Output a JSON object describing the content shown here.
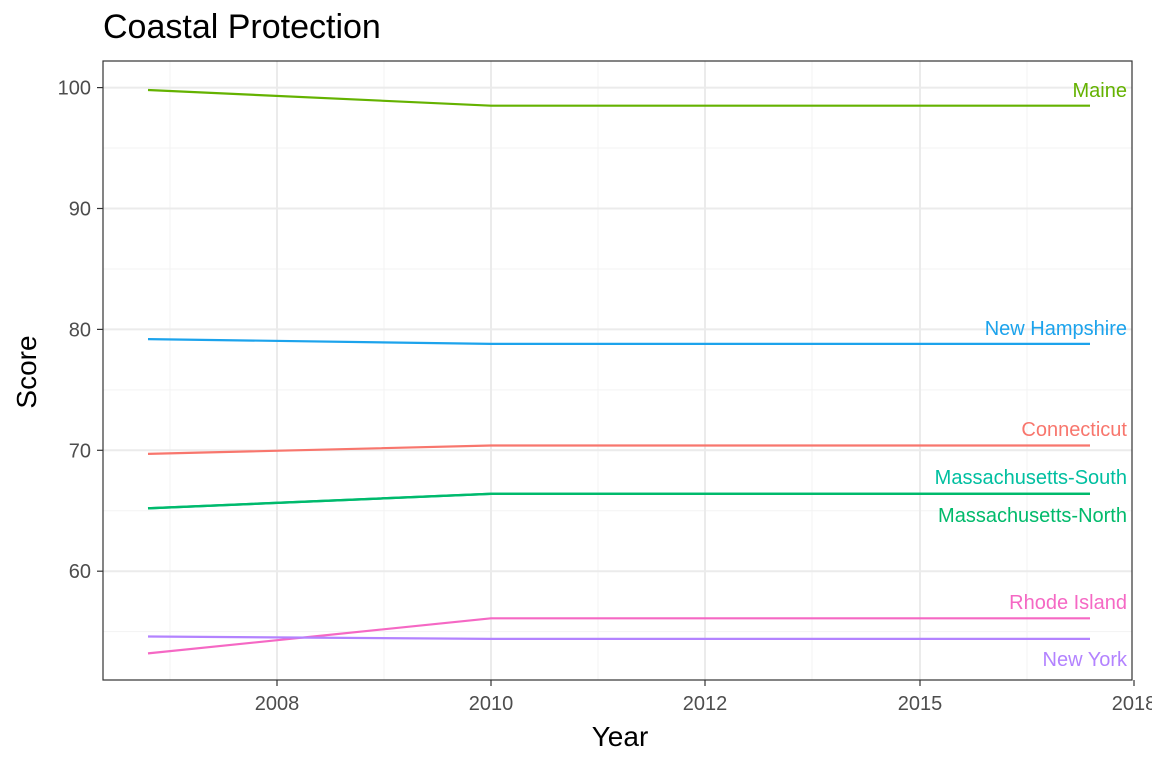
{
  "chart_data": {
    "type": "line",
    "title": "Coastal Protection",
    "xlabel": "Year",
    "ylabel": "Score",
    "x_tick_labels": [
      "2008",
      "2010",
      "2012",
      "2015",
      "2018"
    ],
    "y_ticks": [
      60,
      70,
      80,
      90,
      100
    ],
    "ylim": [
      51,
      102.2
    ],
    "grid": true,
    "legend": "direct labels at right end of each line",
    "x": [
      "2007",
      "2010",
      "2018"
    ],
    "series": [
      {
        "name": "Maine",
        "values": [
          99.8,
          98.5,
          98.5
        ],
        "color": "#64b200",
        "width": 2.2
      },
      {
        "name": "New Hampshire",
        "values": [
          79.2,
          78.8,
          78.8
        ],
        "color": "#1ca3ec",
        "width": 2.2
      },
      {
        "name": "Connecticut",
        "values": [
          69.7,
          70.4,
          70.4
        ],
        "color": "#f8766d",
        "width": 2.2
      },
      {
        "name": "Massachusetts-South",
        "values": [
          65.2,
          66.4,
          66.4
        ],
        "color": "#00bfa0",
        "width": 2.4
      },
      {
        "name": "Massachusetts-North",
        "values": [
          65.2,
          66.4,
          66.4
        ],
        "color": "#00ba6b",
        "width": 2.4
      },
      {
        "name": "Rhode Island",
        "values": [
          53.2,
          56.1,
          56.1
        ],
        "color": "#f568c4",
        "width": 2.2
      },
      {
        "name": "New York",
        "values": [
          54.6,
          54.4,
          54.4
        ],
        "color": "#b383ff",
        "width": 2.2
      }
    ]
  }
}
